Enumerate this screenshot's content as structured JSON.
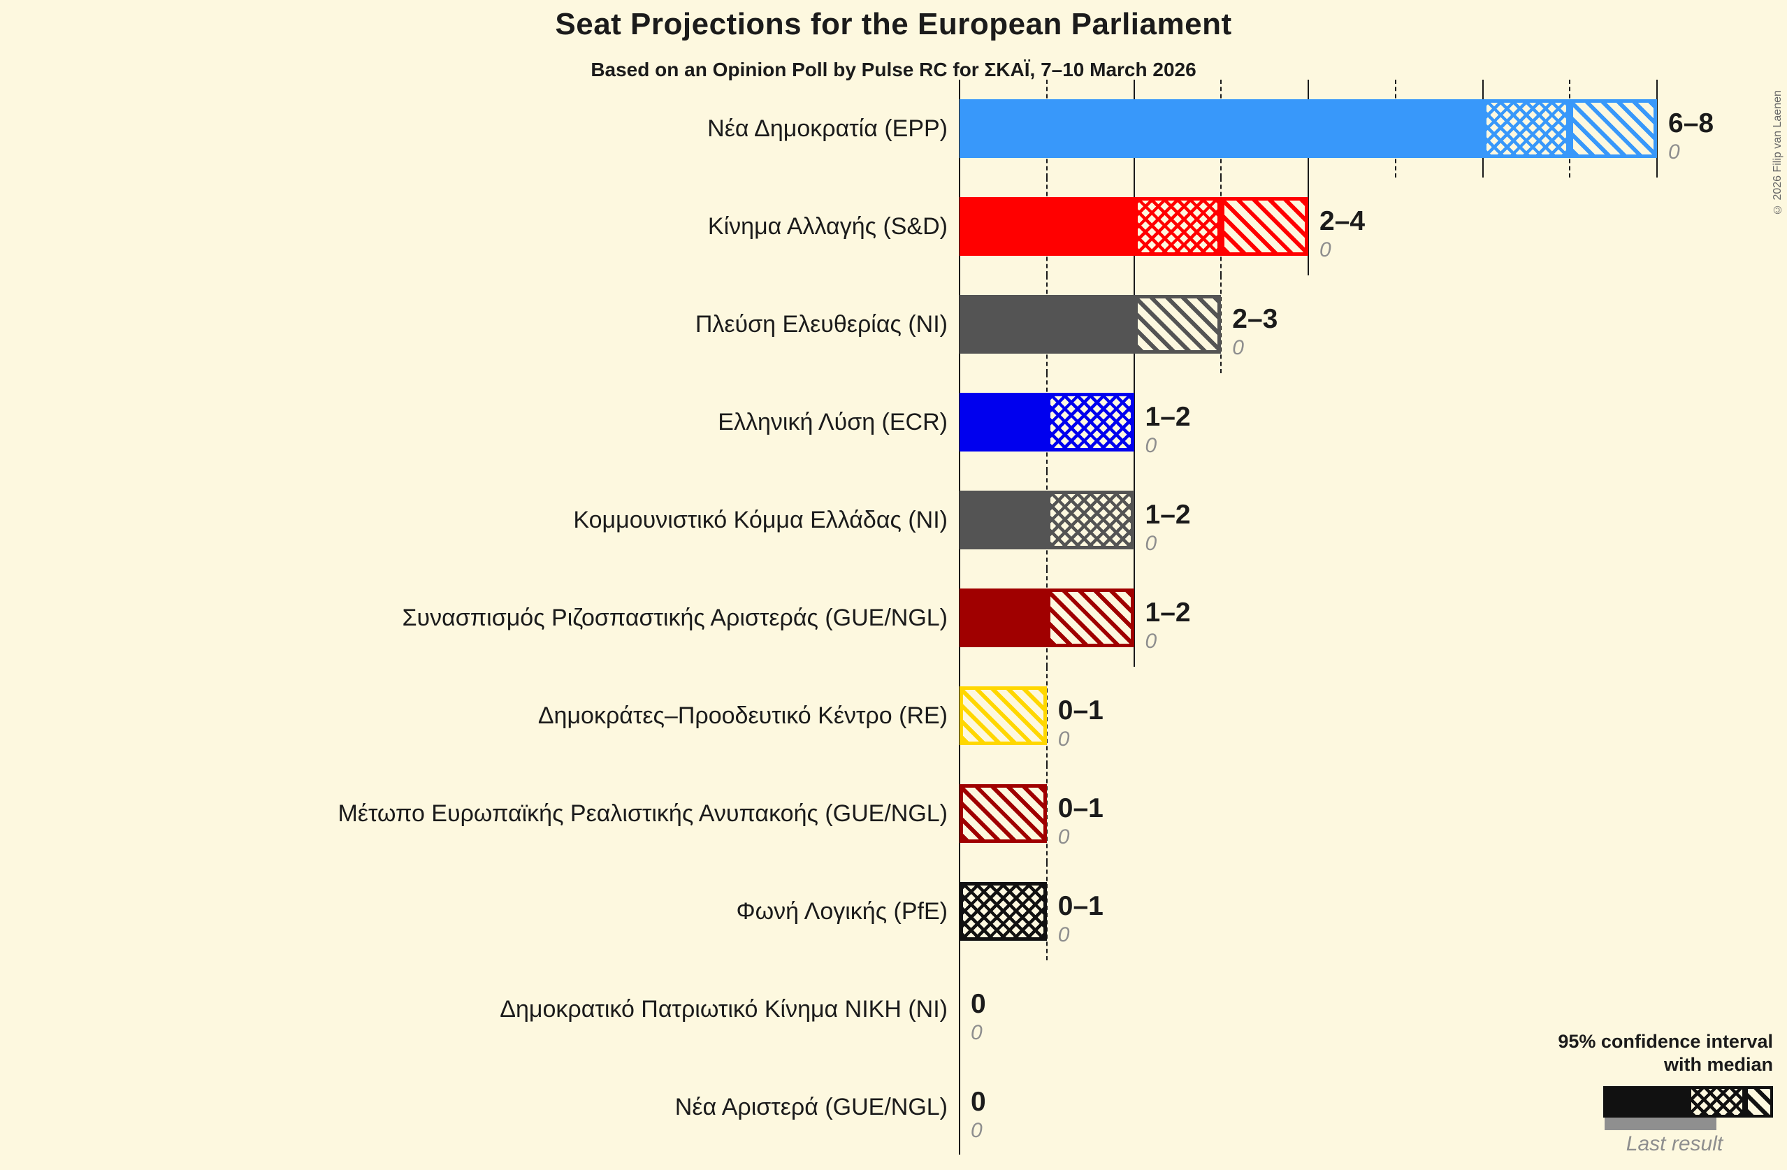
{
  "title": "Seat Projections for the European Parliament",
  "subtitle": "Based on an Opinion Poll by Pulse RC for ΣΚΑΪ, 7–10 March 2026",
  "copyright": "© 2026 Filip van Laenen",
  "legend": {
    "line1": "95% confidence interval",
    "line2": "with median",
    "last_result_label": "Last result"
  },
  "colors": {
    "background": "#FDF8DF",
    "text": "#1b1b1b",
    "gridline": "#1a1a1a",
    "last_result_gray": "#8F8F8F",
    "legend_sample_black": "#111111"
  },
  "chart_data": {
    "type": "bar",
    "orientation": "horizontal",
    "title": "Seat Projections for the European Parliament",
    "subtitle": "Based on an Opinion Poll by Pulse RC for ΣΚΑΪ, 7–10 March 2026",
    "x_axis": {
      "min": 0,
      "max": 8,
      "unit": "seats",
      "solid_gridlines_at": [
        2,
        4,
        6,
        8
      ],
      "dotted_gridlines_at": [
        1,
        3,
        5,
        7
      ],
      "gridlines_shown_only_up_to_bar_max": true
    },
    "bar_semantics": {
      "solid": "0 to lower 95% CI bound",
      "crosshatch": "lower bound to median",
      "diagonal": "median to upper 95% CI bound"
    },
    "parties": [
      {
        "label": "Νέα Δημοκρατία (EPP)",
        "ci_low": 6,
        "median": 7,
        "ci_high": 8,
        "range_label": "6–8",
        "last_result": "0",
        "color": "#3898FA"
      },
      {
        "label": "Κίνημα Αλλαγής (S&D)",
        "ci_low": 2,
        "median": 3,
        "ci_high": 4,
        "range_label": "2–4",
        "last_result": "0",
        "color": "#FF0000"
      },
      {
        "label": "Πλεύση Ελευθερίας (NI)",
        "ci_low": 2,
        "median": 2,
        "ci_high": 3,
        "range_label": "2–3",
        "last_result": "0",
        "color": "#545454"
      },
      {
        "label": "Ελληνική Λύση (ECR)",
        "ci_low": 1,
        "median": 2,
        "ci_high": 2,
        "range_label": "1–2",
        "last_result": "0",
        "color": "#0000EE"
      },
      {
        "label": "Κομμουνιστικό Κόμμα Ελλάδας (NI)",
        "ci_low": 1,
        "median": 2,
        "ci_high": 2,
        "range_label": "1–2",
        "last_result": "0",
        "color": "#545454"
      },
      {
        "label": "Συνασπισμός Ριζοσπαστικής Αριστεράς (GUE/NGL)",
        "ci_low": 1,
        "median": 1,
        "ci_high": 2,
        "range_label": "1–2",
        "last_result": "0",
        "color": "#A00000"
      },
      {
        "label": "Δημοκράτες–Προοδευτικό Κέντρο (RE)",
        "ci_low": 0,
        "median": 0,
        "ci_high": 1,
        "range_label": "0–1",
        "last_result": "0",
        "color": "#FFD700"
      },
      {
        "label": "Μέτωπο Ευρωπαϊκής Ρεαλιστικής Ανυπακοής (GUE/NGL)",
        "ci_low": 0,
        "median": 0,
        "ci_high": 1,
        "range_label": "0–1",
        "last_result": "0",
        "color": "#A00000"
      },
      {
        "label": "Φωνή Λογικής (PfE)",
        "ci_low": 0,
        "median": 1,
        "ci_high": 1,
        "range_label": "0–1",
        "last_result": "0",
        "color": "#111111"
      },
      {
        "label": "Δημοκρατικό Πατριωτικό Κίνημα ΝΙΚΗ (NI)",
        "ci_low": 0,
        "median": 0,
        "ci_high": 0,
        "range_label": "0",
        "last_result": "0",
        "color": "#111111"
      },
      {
        "label": "Νέα Αριστερά (GUE/NGL)",
        "ci_low": 0,
        "median": 0,
        "ci_high": 0,
        "range_label": "0",
        "last_result": "0",
        "color": "#111111"
      }
    ]
  }
}
